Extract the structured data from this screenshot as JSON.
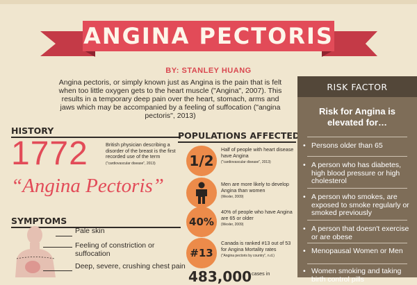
{
  "header": {
    "title": "Angina Pectoris",
    "byline": "BY: STANLEY HUANG",
    "intro": "Angina pectoris, or simply known just as Angina is the pain that is felt when too little oxygen gets to the heart muscle (\"Angina\", 2007). This results in a temporary deep pain over the heart, stomach, arms and jaws which may be accompanied by a feeling of suffocation (\"angina pectoris\", 2013)"
  },
  "history": {
    "title": "HISTORY",
    "year": "1772",
    "description": "British physician describing a disorder of the breast is the first recorded use of the term",
    "citation": "(\"cardiovascular disease\", 2013)",
    "term": "“Angina Pectoris”"
  },
  "symptoms": {
    "title": "SYMPTOMS",
    "items": [
      "Pale skin",
      "Feeling of constriction or suffocation",
      "Deep, severe, crushing chest pain"
    ]
  },
  "populations": {
    "title": "POPULATIONS AFFECTED",
    "items": [
      {
        "badge": "1/2",
        "text": "Half of people with heart disease have Angina",
        "cite": "(\"cardiovascular disease\", 2013)"
      },
      {
        "badge": "person-icon",
        "text": "Men are more likely to develop Angina than women",
        "cite": "(Wexler, 2009)"
      },
      {
        "badge": "40%",
        "text": "40% of people who have Angina are 65 or older",
        "cite": "(Wexler, 2009)"
      },
      {
        "badge": "#13",
        "text": "Canada is ranked #13 out of 53 for Angina Mortality rates",
        "cite": "(\"Angina pectoris by country\", n.d.)"
      }
    ],
    "big_number": "483,000",
    "big_number_text": "cases in"
  },
  "risk": {
    "header": "RISK FACTOR",
    "intro": "Risk for Angina is elevated for…",
    "items": [
      "Persons older than 65",
      "A person who has diabetes, high blood pressure or high cholesterol",
      "A person who smokes, are exposed to smoke regularly or smoked previously",
      "A person that doesn't exercise or are obese",
      "Menopausal Women or Men",
      "Women smoking and taking birth control pills"
    ]
  },
  "colors": {
    "background": "#f0e6cf",
    "banner_red": "#e24b58",
    "accent_orange": "#ec8b4a",
    "panel_brown": "#7e6d58",
    "panel_header": "#534739"
  }
}
